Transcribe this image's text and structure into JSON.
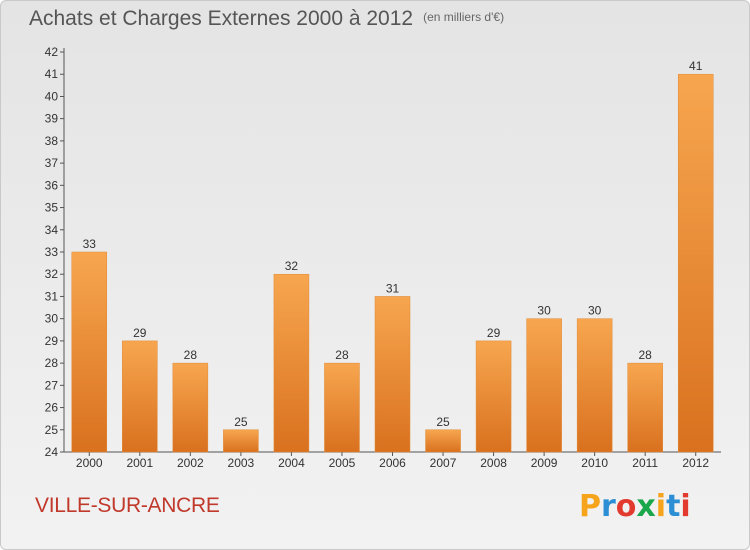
{
  "title": "Achats et Charges Externes 2000 à 2012",
  "subtitle": "(en milliers d'€)",
  "commune": "VILLE-SUR-ANCRE",
  "logo": {
    "letters": [
      "P",
      "r",
      "o",
      "x",
      "i",
      "t",
      "i"
    ],
    "colors": [
      "#f7a41d",
      "#2c8fd6",
      "#e23a2e",
      "#1aa64b",
      "#f7a41d",
      "#2c8fd6",
      "#e23a2e"
    ]
  },
  "colors": {
    "bar_light": "#f7a64f",
    "bar_dark": "#d9711f",
    "title": "#555555",
    "commune": "#c0392b"
  },
  "chart_data": {
    "type": "bar",
    "categories": [
      "2000",
      "2001",
      "2002",
      "2003",
      "2004",
      "2005",
      "2006",
      "2007",
      "2008",
      "2009",
      "2010",
      "2011",
      "2012"
    ],
    "values": [
      33,
      29,
      28,
      25,
      32,
      28,
      31,
      25,
      29,
      30,
      30,
      28,
      41
    ],
    "ylim": [
      24,
      42
    ],
    "yticks": [
      24,
      25,
      26,
      27,
      28,
      29,
      30,
      31,
      32,
      33,
      34,
      35,
      36,
      37,
      38,
      39,
      40,
      41,
      42
    ],
    "grid": false
  }
}
